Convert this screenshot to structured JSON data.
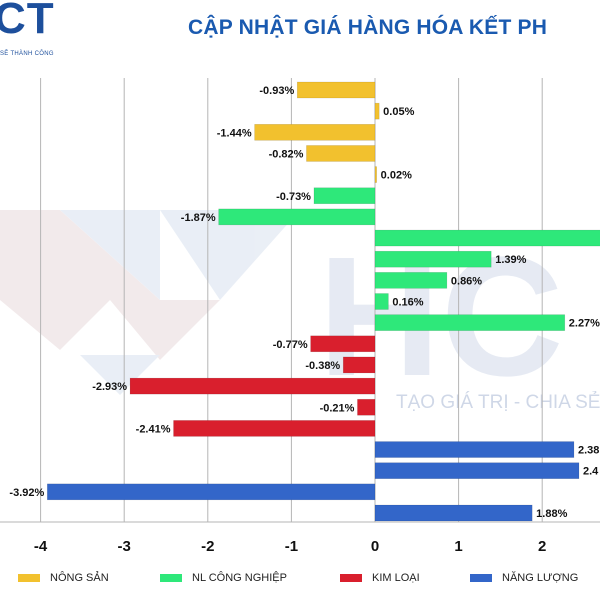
{
  "logo": {
    "text": "CT",
    "tagline": "SẼ THÀNH CÔNG"
  },
  "title": "CẬP NHẬT GIÁ HÀNG HÓA KẾT PH",
  "watermark": {
    "mark": "HC",
    "text": "TẠO GIÁ TRỊ - CHIA SẺ"
  },
  "colors": {
    "nong_san": "#f2c12e",
    "nl_cong_nghiep": "#2ee87a",
    "kim_loai": "#d91f2d",
    "nang_luong": "#3366c9",
    "grid": "#b5b5b5",
    "title": "#1a5ab0"
  },
  "chart_data": {
    "type": "bar",
    "orientation": "horizontal",
    "xlim": [
      -4.45,
      2.7
    ],
    "xticks": [
      -4,
      -3,
      -2,
      -1,
      0,
      1,
      2
    ],
    "xtick_labels": [
      "-4",
      "-3",
      "-2",
      "-1",
      "0",
      "1",
      "2"
    ],
    "grid": true,
    "legend_position": "bottom",
    "series": [
      {
        "name": "NÔNG SẢN",
        "color": "#f2c12e",
        "values": [
          -0.93,
          0.05,
          -1.44,
          -0.82,
          0.02
        ],
        "labels": [
          "-0.93%",
          "0.05%",
          "-1.44%",
          "-0.82%",
          "0.02%"
        ]
      },
      {
        "name": "NL CÔNG NGHIỆP",
        "color": "#2ee87a",
        "values": [
          -0.73,
          -1.87,
          2.7,
          1.39,
          0.86,
          0.16,
          2.27
        ],
        "labels": [
          "-0.73%",
          "-1.87%",
          "",
          "1.39%",
          "0.86%",
          "0.16%",
          "2.27%"
        ]
      },
      {
        "name": "KIM LOẠI",
        "color": "#d91f2d",
        "values": [
          -0.77,
          -0.38,
          -2.93,
          -0.21,
          -2.41
        ],
        "labels": [
          "-0.77%",
          "-0.38%",
          "-2.93%",
          "-0.21%",
          "-2.41%"
        ]
      },
      {
        "name": "NĂNG LƯỢNG",
        "color": "#3366c9",
        "values": [
          2.38,
          2.44,
          -3.92,
          1.88
        ],
        "labels": [
          "2.38",
          "2.4",
          "-3.92%",
          "1.88%"
        ]
      }
    ]
  },
  "legend": [
    {
      "label": "NÔNG SẢN",
      "color": "#f2c12e"
    },
    {
      "label": "NL CÔNG NGHIỆP",
      "color": "#2ee87a"
    },
    {
      "label": "KIM LOẠI",
      "color": "#d91f2d"
    },
    {
      "label": "NĂNG LƯỢNG",
      "color": "#3366c9"
    }
  ]
}
